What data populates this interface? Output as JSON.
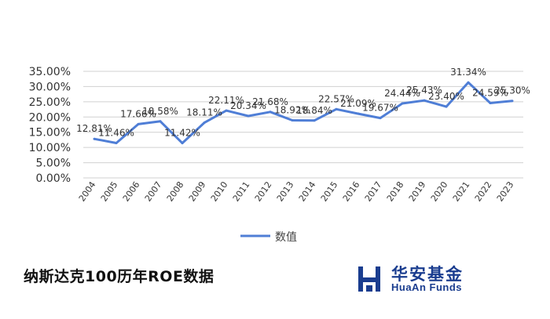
{
  "chart_data": {
    "type": "line",
    "categories": [
      "2004",
      "2005",
      "2006",
      "2007",
      "2008",
      "2009",
      "2010",
      "2011",
      "2012",
      "2013",
      "2014",
      "2015",
      "2016",
      "2017",
      "2018",
      "2019",
      "2020",
      "2021",
      "2022",
      "2023"
    ],
    "series": [
      {
        "name": "数值",
        "values": [
          12.81,
          11.46,
          17.66,
          18.58,
          11.42,
          18.11,
          22.11,
          20.34,
          21.68,
          18.92,
          18.84,
          22.57,
          21.09,
          19.67,
          24.44,
          25.43,
          23.4,
          31.34,
          24.59,
          25.3
        ],
        "labels": [
          "12.81%",
          "11.46%",
          "17.66%",
          "18.58%",
          "11.42%",
          "18.11%",
          "22.11%",
          "20.34%",
          "21.68%",
          "18.92%",
          "18.84%",
          "22.57%",
          "21.09%",
          "19.67%",
          "24.44%",
          "25.43%",
          "23.40%",
          "31.34%",
          "24.59%",
          "25.30%"
        ],
        "color": "#4f7ed6"
      }
    ],
    "yticks": [
      "0.00%",
      "5.00%",
      "10.00%",
      "15.00%",
      "20.00%",
      "25.00%",
      "30.00%",
      "35.00%"
    ],
    "ylim": [
      0,
      35
    ],
    "grid": true,
    "legend_position": "bottom"
  },
  "caption": "纳斯达克100历年ROE数据",
  "brand": {
    "name_cn": "华安基金",
    "name_en": "HuaAn Funds",
    "color": "#1a3d8f"
  }
}
